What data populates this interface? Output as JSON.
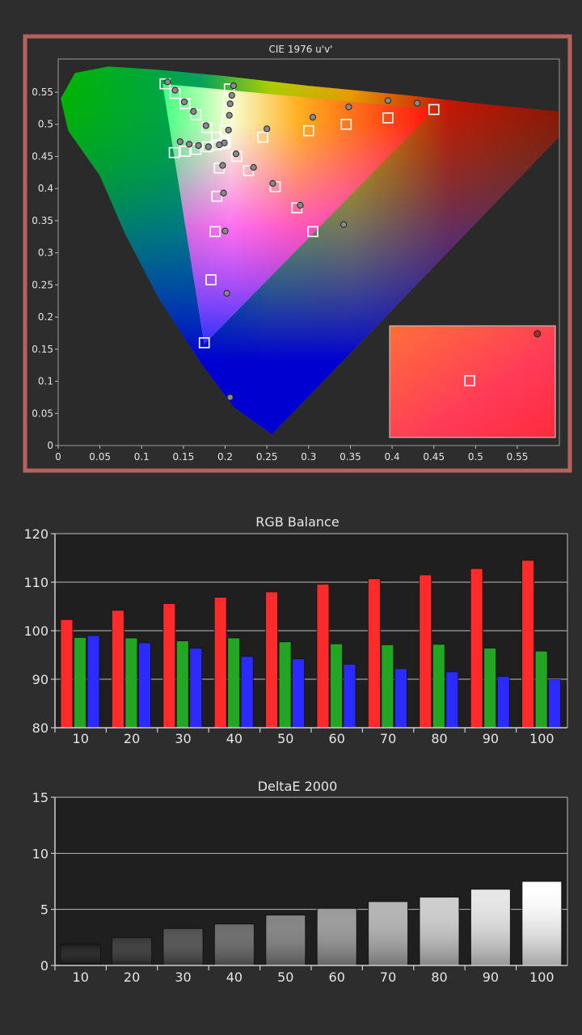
{
  "chart_data": [
    {
      "type": "scatter",
      "title": "CIE 1976 u'v'",
      "xlim": [
        0,
        0.6
      ],
      "ylim": [
        0,
        0.6
      ],
      "x_ticks": [
        "0",
        "0.05",
        "0.1",
        "0.15",
        "0.2",
        "0.25",
        "0.3",
        "0.35",
        "0.4",
        "0.45",
        "0.5",
        "0.55"
      ],
      "y_ticks": [
        "0",
        "0.05",
        "0.1",
        "0.15",
        "0.2",
        "0.25",
        "0.3",
        "0.35",
        "0.4",
        "0.45",
        "0.5",
        "0.55"
      ],
      "grid": false,
      "series": [
        {
          "marker": "square",
          "points": [
            [
              0.128,
              0.563
            ],
            [
              0.14,
              0.548
            ],
            [
              0.152,
              0.532
            ],
            [
              0.165,
              0.515
            ],
            [
              0.178,
              0.495
            ],
            [
              0.19,
              0.48
            ],
            [
              0.2,
              0.472
            ],
            [
              0.198,
              0.47
            ],
            [
              0.205,
              0.555
            ],
            [
              0.204,
              0.538
            ],
            [
              0.203,
              0.522
            ],
            [
              0.202,
              0.505
            ],
            [
              0.2,
              0.49
            ],
            [
              0.139,
              0.456
            ],
            [
              0.152,
              0.458
            ],
            [
              0.165,
              0.461
            ],
            [
              0.179,
              0.465
            ],
            [
              0.19,
              0.468
            ],
            [
              0.214,
              0.45
            ],
            [
              0.228,
              0.428
            ],
            [
              0.245,
              0.48
            ],
            [
              0.26,
              0.403
            ],
            [
              0.286,
              0.37
            ],
            [
              0.3,
              0.49
            ],
            [
              0.305,
              0.333
            ],
            [
              0.345,
              0.5
            ],
            [
              0.395,
              0.51
            ],
            [
              0.45,
              0.523
            ],
            [
              0.193,
              0.432
            ],
            [
              0.19,
              0.388
            ],
            [
              0.188,
              0.333
            ],
            [
              0.183,
              0.258
            ],
            [
              0.175,
              0.16
            ]
          ]
        },
        {
          "marker": "circle",
          "points": [
            [
              0.131,
              0.566
            ],
            [
              0.14,
              0.553
            ],
            [
              0.151,
              0.535
            ],
            [
              0.162,
              0.52
            ],
            [
              0.177,
              0.498
            ],
            [
              0.199,
              0.471
            ],
            [
              0.21,
              0.56
            ],
            [
              0.208,
              0.545
            ],
            [
              0.206,
              0.532
            ],
            [
              0.205,
              0.514
            ],
            [
              0.204,
              0.491
            ],
            [
              0.146,
              0.473
            ],
            [
              0.157,
              0.469
            ],
            [
              0.168,
              0.467
            ],
            [
              0.18,
              0.465
            ],
            [
              0.193,
              0.468
            ],
            [
              0.213,
              0.454
            ],
            [
              0.234,
              0.433
            ],
            [
              0.25,
              0.493
            ],
            [
              0.257,
              0.408
            ],
            [
              0.29,
              0.374
            ],
            [
              0.305,
              0.511
            ],
            [
              0.348,
              0.527
            ],
            [
              0.342,
              0.344
            ],
            [
              0.395,
              0.537
            ],
            [
              0.43,
              0.533
            ],
            [
              0.197,
              0.436
            ],
            [
              0.198,
              0.393
            ],
            [
              0.2,
              0.334
            ],
            [
              0.202,
              0.237
            ],
            [
              0.206,
              0.075
            ]
          ]
        }
      ],
      "inset": {
        "square": [
          0.493,
          0.101
        ],
        "circle": [
          0.574,
          0.174
        ]
      },
      "colors": {
        "frame": "#b7615a",
        "target": "#ffffff",
        "measured": "#8a8a8a"
      }
    },
    {
      "type": "bar",
      "title": "RGB Balance",
      "categories": [
        "10",
        "20",
        "30",
        "40",
        "50",
        "60",
        "70",
        "80",
        "90",
        "100"
      ],
      "ylim": [
        80,
        120
      ],
      "y_ticks": [
        "80",
        "90",
        "100",
        "110",
        "120"
      ],
      "series": [
        {
          "values": [
            102.3,
            104.2,
            105.6,
            106.9,
            108.0,
            109.6,
            110.7,
            111.5,
            112.8,
            114.5
          ],
          "color": "#ff2b2b"
        },
        {
          "values": [
            98.6,
            98.5,
            97.9,
            98.5,
            97.7,
            97.3,
            97.1,
            97.2,
            96.4,
            95.8
          ],
          "color": "#23a623"
        },
        {
          "values": [
            99.0,
            97.5,
            96.4,
            94.7,
            94.2,
            93.1,
            92.2,
            91.5,
            90.6,
            89.9
          ],
          "color": "#2b2bff"
        }
      ],
      "grid": true
    },
    {
      "type": "bar",
      "title": "DeltaE 2000",
      "categories": [
        "10",
        "20",
        "30",
        "40",
        "50",
        "60",
        "70",
        "80",
        "90",
        "100"
      ],
      "values": [
        1.9,
        2.5,
        3.3,
        3.7,
        4.5,
        5.1,
        5.7,
        6.1,
        6.8,
        7.5
      ],
      "ylim": [
        0,
        15
      ],
      "y_ticks": [
        "0",
        "5",
        "10",
        "15"
      ],
      "grid": true
    }
  ]
}
